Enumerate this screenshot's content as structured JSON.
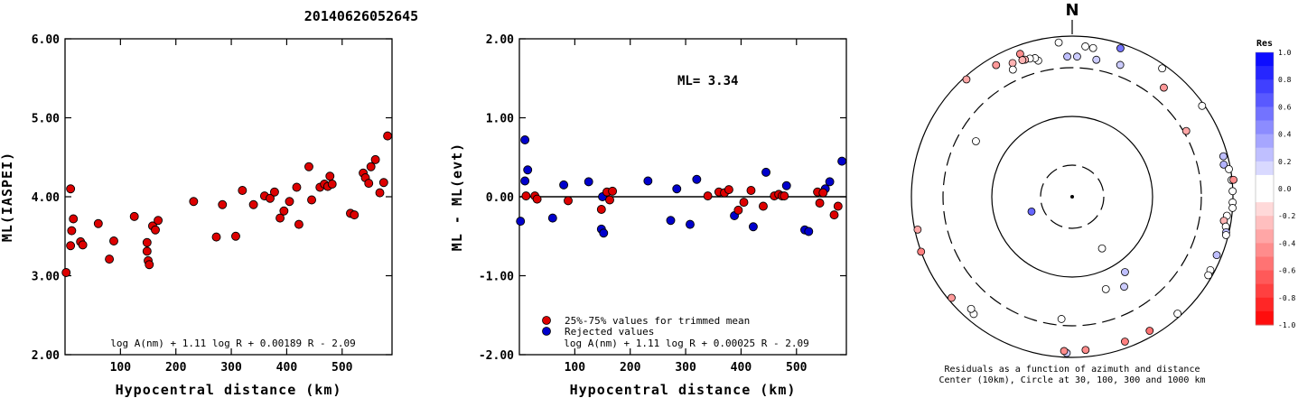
{
  "title": "20140626052645",
  "chart_data": [
    {
      "type": "scatter",
      "id": "left",
      "xlabel": "Hypocentral distance (km)",
      "ylabel": "ML(IASPEI)",
      "xlim": [
        0,
        590
      ],
      "ylim": [
        2.0,
        6.0
      ],
      "xticks": [
        100,
        200,
        300,
        400,
        500
      ],
      "yticks": [
        "2.00",
        "3.00",
        "4.00",
        "5.00",
        "6.00"
      ],
      "formula": "log A(nm) + 1.11 log R + 0.00189 R - 2.09",
      "marker_color": "#dd0000",
      "points": [
        [
          2,
          3.04
        ],
        [
          10,
          4.1
        ],
        [
          10,
          3.38
        ],
        [
          15,
          3.72
        ],
        [
          12,
          3.57
        ],
        [
          28,
          3.43
        ],
        [
          32,
          3.39
        ],
        [
          60,
          3.66
        ],
        [
          80,
          3.21
        ],
        [
          88,
          3.44
        ],
        [
          125,
          3.75
        ],
        [
          148,
          3.42
        ],
        [
          148,
          3.31
        ],
        [
          150,
          3.19
        ],
        [
          152,
          3.14
        ],
        [
          158,
          3.63
        ],
        [
          163,
          3.58
        ],
        [
          168,
          3.7
        ],
        [
          232,
          3.94
        ],
        [
          273,
          3.49
        ],
        [
          284,
          3.9
        ],
        [
          308,
          3.5
        ],
        [
          320,
          4.08
        ],
        [
          340,
          3.9
        ],
        [
          360,
          4.01
        ],
        [
          370,
          3.98
        ],
        [
          378,
          4.06
        ],
        [
          388,
          3.73
        ],
        [
          395,
          3.82
        ],
        [
          405,
          3.94
        ],
        [
          418,
          4.12
        ],
        [
          422,
          3.65
        ],
        [
          440,
          4.38
        ],
        [
          445,
          3.96
        ],
        [
          460,
          4.12
        ],
        [
          468,
          4.16
        ],
        [
          474,
          4.13
        ],
        [
          478,
          4.26
        ],
        [
          482,
          4.16
        ],
        [
          515,
          3.79
        ],
        [
          522,
          3.77
        ],
        [
          538,
          4.3
        ],
        [
          542,
          4.24
        ],
        [
          548,
          4.17
        ],
        [
          552,
          4.38
        ],
        [
          560,
          4.47
        ],
        [
          568,
          4.05
        ],
        [
          575,
          4.18
        ],
        [
          582,
          4.77
        ]
      ]
    },
    {
      "type": "scatter",
      "id": "middle",
      "xlabel": "Hypocentral distance (km)",
      "ylabel": "ML - ML(evt)",
      "xlim": [
        0,
        590
      ],
      "ylim": [
        -2.0,
        2.0
      ],
      "xticks": [
        100,
        200,
        300,
        400,
        500
      ],
      "yticks": [
        "-2.00",
        "-1.00",
        "0.00",
        "1.00",
        "2.00"
      ],
      "ml_label": "ML= 3.34",
      "formula": "log A(nm) + 1.11 log R + 0.00025 R - 2.09",
      "legend": [
        {
          "label": "25%-75% values for trimmed mean",
          "color": "#dd0000"
        },
        {
          "label": "Rejected values",
          "color": "#0000cc"
        }
      ],
      "accepted": [
        [
          12,
          0.01
        ],
        [
          28,
          0.01
        ],
        [
          32,
          -0.03
        ],
        [
          88,
          -0.05
        ],
        [
          148,
          -0.16
        ],
        [
          158,
          0.06
        ],
        [
          163,
          -0.04
        ],
        [
          168,
          0.07
        ],
        [
          340,
          0.01
        ],
        [
          360,
          0.06
        ],
        [
          370,
          0.05
        ],
        [
          378,
          0.09
        ],
        [
          395,
          -0.17
        ],
        [
          405,
          -0.07
        ],
        [
          418,
          0.08
        ],
        [
          440,
          -0.12
        ],
        [
          460,
          0.01
        ],
        [
          468,
          0.03
        ],
        [
          474,
          0.01
        ],
        [
          478,
          0.01
        ],
        [
          538,
          0.06
        ],
        [
          542,
          -0.08
        ],
        [
          548,
          0.05
        ],
        [
          568,
          -0.23
        ],
        [
          575,
          -0.12
        ]
      ],
      "rejected": [
        [
          2,
          -0.31
        ],
        [
          10,
          0.72
        ],
        [
          15,
          0.34
        ],
        [
          10,
          0.2
        ],
        [
          60,
          -0.27
        ],
        [
          80,
          0.15
        ],
        [
          125,
          0.19
        ],
        [
          148,
          -0.41
        ],
        [
          152,
          -0.46
        ],
        [
          150,
          0.0
        ],
        [
          232,
          0.2
        ],
        [
          273,
          -0.3
        ],
        [
          284,
          0.1
        ],
        [
          308,
          -0.35
        ],
        [
          320,
          0.22
        ],
        [
          388,
          -0.24
        ],
        [
          422,
          -0.38
        ],
        [
          445,
          0.31
        ],
        [
          482,
          0.14
        ],
        [
          515,
          -0.42
        ],
        [
          522,
          -0.44
        ],
        [
          552,
          0.1
        ],
        [
          560,
          0.19
        ],
        [
          582,
          0.45
        ]
      ]
    },
    {
      "type": "polar",
      "id": "right",
      "north_label": "N",
      "caption_1": "Residuals as a function of azimuth and distance",
      "caption_2": "Center (10km), Circle at 30, 100, 300 and 1000 km",
      "circles_km": [
        30,
        100,
        300,
        1000
      ],
      "colorbar_title": "Res",
      "colorbar_ticks": [
        "1.0",
        "0.8",
        "0.6",
        "0.4",
        "0.2",
        "0.0",
        "-0.2",
        "-0.4",
        "-0.6",
        "-0.8",
        "-1.0"
      ],
      "points": [
        {
          "az": 355,
          "dist_km": 800,
          "res": -0.05
        },
        {
          "az": 5,
          "dist_km": 690,
          "res": 0.0
        },
        {
          "az": 8,
          "dist_km": 670,
          "res": 0.0
        },
        {
          "az": 18,
          "dist_km": 840,
          "res": 0.55
        },
        {
          "az": 35,
          "dist_km": 860,
          "res": 0.0
        },
        {
          "az": 340,
          "dist_km": 720,
          "res": -0.45
        },
        {
          "az": 330,
          "dist_km": 720,
          "res": -0.4
        },
        {
          "az": 318,
          "dist_km": 900,
          "res": -0.35
        },
        {
          "az": 346,
          "dist_km": 460,
          "res": 0.0
        },
        {
          "az": 345,
          "dist_km": 520,
          "res": 0.0
        },
        {
          "az": 343,
          "dist_km": 540,
          "res": 0.0
        },
        {
          "az": 341,
          "dist_km": 550,
          "res": -0.3
        },
        {
          "az": 340,
          "dist_km": 560,
          "res": -0.3
        },
        {
          "az": 336,
          "dist_km": 580,
          "res": -0.3
        },
        {
          "az": 335,
          "dist_km": 460,
          "res": 0.0
        },
        {
          "az": 358,
          "dist_km": 460,
          "res": 0.25
        },
        {
          "az": 2,
          "dist_km": 460,
          "res": 0.2
        },
        {
          "az": 10,
          "dist_km": 440,
          "res": 0.2
        },
        {
          "az": 20,
          "dist_km": 460,
          "res": 0.2
        },
        {
          "az": 40,
          "dist_km": 500,
          "res": -0.4
        },
        {
          "az": 55,
          "dist_km": 920,
          "res": 0.0
        },
        {
          "az": 60,
          "dist_km": 330,
          "res": -0.35
        },
        {
          "az": 75,
          "dist_km": 850,
          "res": 0.25
        },
        {
          "az": 78,
          "dist_km": 800,
          "res": 0.3
        },
        {
          "az": 80,
          "dist_km": 940,
          "res": 0.0
        },
        {
          "az": 84,
          "dist_km": 980,
          "res": 0.0
        },
        {
          "az": 84,
          "dist_km": 1050,
          "res": -0.45
        },
        {
          "az": 88,
          "dist_km": 990,
          "res": 0.0
        },
        {
          "az": 92,
          "dist_km": 990,
          "res": 0.0
        },
        {
          "az": 94,
          "dist_km": 1000,
          "res": 0.0
        },
        {
          "az": 97,
          "dist_km": 830,
          "res": 0.0
        },
        {
          "az": 99,
          "dist_km": 760,
          "res": -0.3
        },
        {
          "az": 101,
          "dist_km": 850,
          "res": 0.0
        },
        {
          "az": 103,
          "dist_km": 900,
          "res": 0.25
        },
        {
          "az": 104,
          "dist_km": 920,
          "res": 0.0
        },
        {
          "az": 112,
          "dist_km": 830,
          "res": 0.25
        },
        {
          "az": 118,
          "dist_km": 850,
          "res": 0.0
        },
        {
          "az": 120,
          "dist_km": 870,
          "res": 0.0
        },
        {
          "az": 138,
          "dist_km": 880,
          "res": 0.0
        },
        {
          "az": 150,
          "dist_km": 800,
          "res": -0.55
        },
        {
          "az": 160,
          "dist_km": 780,
          "res": -0.5
        },
        {
          "az": 175,
          "dist_km": 770,
          "res": -0.45
        },
        {
          "az": 182,
          "dist_km": 850,
          "res": 0.2
        },
        {
          "az": 183,
          "dist_km": 790,
          "res": -0.45
        },
        {
          "az": 185,
          "dist_km": 260,
          "res": 0.0
        },
        {
          "az": 145,
          "dist_km": 130,
          "res": 0.25
        },
        {
          "az": 150,
          "dist_km": 170,
          "res": 0.2
        },
        {
          "az": 160,
          "dist_km": 150,
          "res": 0.0
        },
        {
          "az": 150,
          "dist_km": 60,
          "res": 0.0
        },
        {
          "az": 250,
          "dist_km": 40,
          "res": 0.6
        },
        {
          "az": 220,
          "dist_km": 750,
          "res": 0.0
        },
        {
          "az": 222,
          "dist_km": 690,
          "res": 0.0
        },
        {
          "az": 230,
          "dist_km": 880,
          "res": -0.4
        },
        {
          "az": 250,
          "dist_km": 1000,
          "res": -0.5
        },
        {
          "az": 258,
          "dist_km": 900,
          "res": -0.35
        },
        {
          "az": 300,
          "dist_km": 200,
          "res": 0.0
        }
      ]
    }
  ]
}
